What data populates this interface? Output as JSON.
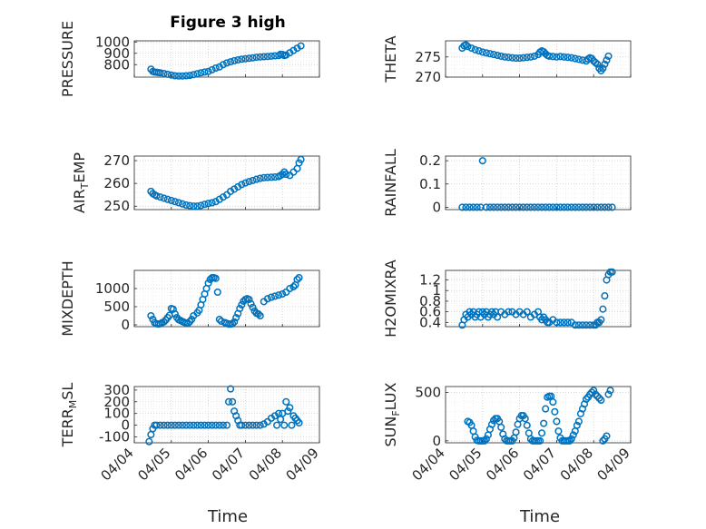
{
  "figure": {
    "title": "Figure 3 high",
    "marker_color": "#0072BD",
    "time_ticks": [
      "04/04",
      "04/05",
      "04/06",
      "04/07",
      "04/08",
      "04/09"
    ]
  },
  "chart_data": [
    {
      "type": "scatter",
      "ylabel": "PRESSURE",
      "ylim": [
        690,
        1010
      ],
      "yticks": [
        "800",
        "900",
        "1000"
      ],
      "ytick_values": [
        800,
        900,
        1000
      ],
      "x": [
        4.45,
        4.5,
        4.55,
        4.6,
        4.65,
        4.7,
        4.8,
        4.9,
        5.0,
        5.1,
        5.2,
        5.3,
        5.4,
        5.5,
        5.6,
        5.7,
        5.8,
        5.9,
        6.0,
        6.1,
        6.2,
        6.3,
        6.4,
        6.5,
        6.6,
        6.7,
        6.8,
        6.9,
        7.0,
        7.1,
        7.2,
        7.3,
        7.4,
        7.5,
        7.6,
        7.7,
        7.8,
        7.9,
        7.95,
        8.0,
        8.05,
        8.1,
        8.2,
        8.3,
        8.4,
        8.5
      ],
      "y": [
        760,
        740,
        735,
        733,
        730,
        728,
        722,
        715,
        708,
        702,
        700,
        700,
        702,
        705,
        712,
        720,
        728,
        735,
        740,
        755,
        770,
        780,
        800,
        815,
        825,
        835,
        842,
        848,
        852,
        856,
        860,
        865,
        868,
        870,
        872,
        875,
        878,
        880,
        892,
        890,
        880,
        885,
        905,
        925,
        945,
        965
      ]
    },
    {
      "type": "scatter",
      "ylabel": "THETA",
      "ylim": [
        270,
        279
      ],
      "yticks": [
        "270",
        "275"
      ],
      "ytick_values": [
        270,
        275
      ],
      "x": [
        4.45,
        4.5,
        4.55,
        4.6,
        4.7,
        4.8,
        4.9,
        5.0,
        5.1,
        5.2,
        5.3,
        5.4,
        5.5,
        5.6,
        5.7,
        5.8,
        5.9,
        6.0,
        6.1,
        6.2,
        6.3,
        6.4,
        6.5,
        6.55,
        6.6,
        6.65,
        6.7,
        6.75,
        6.8,
        6.9,
        7.0,
        7.1,
        7.2,
        7.3,
        7.4,
        7.5,
        7.6,
        7.7,
        7.8,
        7.85,
        7.9,
        7.95,
        8.0,
        8.05,
        8.1,
        8.15,
        8.2,
        8.25,
        8.3,
        8.35,
        8.4
      ],
      "y": [
        277.2,
        277.8,
        278.0,
        277.6,
        277.2,
        276.8,
        276.5,
        276.2,
        276.0,
        275.8,
        275.6,
        275.4,
        275.2,
        275.0,
        274.9,
        274.8,
        274.7,
        274.7,
        274.8,
        274.9,
        275.0,
        275.2,
        275.6,
        276.2,
        276.5,
        276.3,
        275.8,
        275.4,
        275.2,
        275.1,
        275.0,
        275.1,
        275.0,
        274.9,
        274.8,
        274.6,
        274.4,
        274.2,
        274.0,
        274.5,
        274.8,
        274.6,
        274.0,
        273.6,
        273.2,
        272.2,
        271.6,
        272.2,
        273.2,
        274.2,
        275.2
      ]
    },
    {
      "type": "scatter",
      "ylabel": "AIR_TEMP",
      "ylim": [
        248.5,
        272
      ],
      "yticks": [
        "250",
        "260",
        "270"
      ],
      "ytick_values": [
        250,
        260,
        270
      ],
      "x": [
        4.45,
        4.5,
        4.55,
        4.6,
        4.7,
        4.8,
        4.9,
        5.0,
        5.1,
        5.2,
        5.3,
        5.4,
        5.5,
        5.6,
        5.7,
        5.8,
        5.9,
        6.0,
        6.1,
        6.2,
        6.3,
        6.4,
        6.5,
        6.6,
        6.7,
        6.8,
        6.9,
        7.0,
        7.1,
        7.2,
        7.3,
        7.4,
        7.5,
        7.6,
        7.7,
        7.8,
        7.9,
        7.95,
        8.0,
        8.05,
        8.1,
        8.2,
        8.3,
        8.4,
        8.45,
        8.5
      ],
      "y": [
        256.5,
        255.5,
        255,
        254.5,
        254,
        253.5,
        253,
        252.5,
        252,
        251.5,
        251,
        250.5,
        250.2,
        250,
        250,
        250.3,
        250.8,
        251.2,
        251.5,
        252,
        253,
        254,
        255,
        256.5,
        257.5,
        258.5,
        259.5,
        260.2,
        260.8,
        261.3,
        261.8,
        262.2,
        262.5,
        262.6,
        262.7,
        262.8,
        263,
        263.5,
        264,
        265,
        264,
        263.5,
        265,
        266.5,
        269,
        270.5
      ]
    },
    {
      "type": "scatter",
      "ylabel": "RAINFALL",
      "ylim": [
        -0.01,
        0.22
      ],
      "yticks": [
        "0",
        "0.1",
        "0.2"
      ],
      "ytick_values": [
        0,
        0.1,
        0.2
      ],
      "x": [
        4.45,
        4.55,
        4.65,
        4.75,
        4.85,
        4.95,
        5.0,
        5.1,
        5.2,
        5.3,
        5.4,
        5.5,
        5.6,
        5.7,
        5.8,
        5.9,
        6.0,
        6.1,
        6.2,
        6.3,
        6.4,
        6.5,
        6.6,
        6.7,
        6.8,
        6.9,
        7.0,
        7.1,
        7.2,
        7.3,
        7.4,
        7.5,
        7.6,
        7.7,
        7.8,
        7.9,
        8.0,
        8.1,
        8.2,
        8.3,
        8.4,
        8.5
      ],
      "y": [
        0,
        0,
        0,
        0,
        0,
        0,
        0.2,
        0,
        0,
        0,
        0,
        0,
        0,
        0,
        0,
        0,
        0,
        0,
        0,
        0,
        0,
        0,
        0,
        0,
        0,
        0,
        0,
        0,
        0,
        0,
        0,
        0,
        0,
        0,
        0,
        0,
        0,
        0,
        0,
        0,
        0,
        0
      ]
    },
    {
      "type": "scatter",
      "ylabel": "MIXDEPTH",
      "ylim": [
        -50,
        1500
      ],
      "yticks": [
        "0",
        "500",
        "1000"
      ],
      "ytick_values": [
        0,
        500,
        1000
      ],
      "x": [
        4.45,
        4.5,
        4.55,
        4.6,
        4.65,
        4.7,
        4.75,
        4.8,
        4.85,
        4.9,
        4.95,
        5.0,
        5.05,
        5.1,
        5.15,
        5.2,
        5.25,
        5.3,
        5.35,
        5.4,
        5.45,
        5.5,
        5.55,
        5.6,
        5.7,
        5.75,
        5.8,
        5.85,
        5.9,
        5.95,
        6.0,
        6.05,
        6.1,
        6.15,
        6.2,
        6.25,
        6.3,
        6.35,
        6.45,
        6.5,
        6.55,
        6.6,
        6.65,
        6.7,
        6.75,
        6.8,
        6.85,
        6.9,
        6.95,
        7.0,
        7.05,
        7.1,
        7.15,
        7.2,
        7.25,
        7.3,
        7.35,
        7.4,
        7.5,
        7.6,
        7.7,
        7.8,
        7.9,
        8.0,
        8.1,
        8.2,
        8.3,
        8.35,
        8.4,
        8.45
      ],
      "y": [
        250,
        150,
        60,
        30,
        20,
        30,
        60,
        80,
        130,
        200,
        260,
        450,
        430,
        300,
        200,
        140,
        120,
        90,
        70,
        50,
        40,
        90,
        150,
        250,
        330,
        400,
        550,
        700,
        850,
        1000,
        1150,
        1250,
        1300,
        1300,
        1280,
        900,
        150,
        100,
        60,
        40,
        20,
        20,
        30,
        80,
        200,
        310,
        450,
        550,
        650,
        700,
        720,
        700,
        580,
        480,
        380,
        320,
        300,
        250,
        640,
        720,
        760,
        790,
        820,
        850,
        900,
        1000,
        1050,
        1100,
        1250,
        1300
      ]
    },
    {
      "type": "scatter",
      "ylabel": "H2OMIXRA",
      "ylim": [
        0.32,
        1.38
      ],
      "yticks": [
        "0.4",
        "0.6",
        "0.8",
        "1",
        "1.2"
      ],
      "ytick_values": [
        0.4,
        0.6,
        0.8,
        1.0,
        1.2
      ],
      "x": [
        4.45,
        4.5,
        4.55,
        4.6,
        4.65,
        4.7,
        4.75,
        4.8,
        4.85,
        4.9,
        4.95,
        5.0,
        5.05,
        5.1,
        5.15,
        5.2,
        5.25,
        5.3,
        5.35,
        5.4,
        5.5,
        5.6,
        5.7,
        5.8,
        5.9,
        6.0,
        6.1,
        6.2,
        6.3,
        6.4,
        6.5,
        6.55,
        6.6,
        6.65,
        6.7,
        6.75,
        6.8,
        6.9,
        7.0,
        7.1,
        7.2,
        7.3,
        7.4,
        7.5,
        7.6,
        7.7,
        7.8,
        7.9,
        8.0,
        8.05,
        8.1,
        8.15,
        8.2,
        8.25,
        8.3,
        8.35,
        8.4,
        8.45,
        8.5
      ],
      "y": [
        0.35,
        0.45,
        0.55,
        0.5,
        0.6,
        0.55,
        0.6,
        0.5,
        0.55,
        0.6,
        0.5,
        0.6,
        0.55,
        0.6,
        0.5,
        0.55,
        0.6,
        0.55,
        0.6,
        0.5,
        0.6,
        0.55,
        0.6,
        0.6,
        0.55,
        0.6,
        0.55,
        0.6,
        0.5,
        0.55,
        0.6,
        0.5,
        0.45,
        0.5,
        0.45,
        0.4,
        0.4,
        0.45,
        0.4,
        0.4,
        0.4,
        0.4,
        0.4,
        0.35,
        0.35,
        0.35,
        0.35,
        0.35,
        0.35,
        0.35,
        0.4,
        0.4,
        0.45,
        0.65,
        0.9,
        1.2,
        1.3,
        1.35,
        1.35
      ]
    },
    {
      "type": "scatter",
      "ylabel": "TERR_MSL",
      "ylim": [
        -150,
        330
      ],
      "yticks": [
        "-100",
        "0",
        "100",
        "200",
        "300"
      ],
      "ytick_values": [
        -100,
        0,
        100,
        200,
        300
      ],
      "x": [
        4.4,
        4.45,
        4.5,
        4.55,
        4.6,
        4.7,
        4.8,
        4.9,
        5.0,
        5.1,
        5.2,
        5.3,
        5.4,
        5.5,
        5.6,
        5.7,
        5.8,
        5.9,
        6.0,
        6.1,
        6.2,
        6.3,
        6.4,
        6.5,
        6.55,
        6.6,
        6.65,
        6.7,
        6.75,
        6.8,
        6.85,
        6.9,
        7.0,
        7.1,
        7.2,
        7.3,
        7.4,
        7.5,
        7.6,
        7.7,
        7.8,
        7.85,
        7.9,
        7.95,
        8.0,
        8.05,
        8.1,
        8.15,
        8.2,
        8.25,
        8.3,
        8.35,
        8.4,
        8.45
      ],
      "y": [
        -140,
        -80,
        -30,
        0,
        0,
        0,
        0,
        0,
        0,
        0,
        0,
        0,
        0,
        0,
        0,
        0,
        0,
        0,
        0,
        0,
        0,
        0,
        0,
        0,
        200,
        310,
        200,
        120,
        80,
        40,
        0,
        0,
        0,
        0,
        0,
        0,
        0,
        10,
        30,
        60,
        80,
        0,
        100,
        50,
        100,
        0,
        200,
        120,
        150,
        0,
        80,
        60,
        40,
        20
      ]
    },
    {
      "type": "scatter",
      "ylabel": "SUN_FLUX",
      "ylim": [
        -20,
        560
      ],
      "yticks": [
        "0",
        "500"
      ],
      "ytick_values": [
        0,
        500
      ],
      "x": [
        4.6,
        4.65,
        4.7,
        4.75,
        4.8,
        4.85,
        4.9,
        4.95,
        5.0,
        5.05,
        5.1,
        5.15,
        5.2,
        5.25,
        5.3,
        5.35,
        5.4,
        5.45,
        5.5,
        5.55,
        5.6,
        5.65,
        5.7,
        5.75,
        5.8,
        5.85,
        5.9,
        5.95,
        6.0,
        6.05,
        6.1,
        6.15,
        6.2,
        6.25,
        6.3,
        6.35,
        6.4,
        6.45,
        6.5,
        6.55,
        6.6,
        6.65,
        6.7,
        6.75,
        6.8,
        6.85,
        6.9,
        6.95,
        7.0,
        7.05,
        7.1,
        7.15,
        7.2,
        7.25,
        7.3,
        7.35,
        7.4,
        7.45,
        7.5,
        7.55,
        7.6,
        7.65,
        7.7,
        7.75,
        7.8,
        7.85,
        7.9,
        7.95,
        8.0,
        8.05,
        8.1,
        8.15,
        8.2,
        8.25,
        8.3,
        8.35,
        8.4,
        8.45
      ],
      "y": [
        200,
        190,
        160,
        100,
        40,
        5,
        0,
        0,
        0,
        0,
        20,
        60,
        120,
        170,
        210,
        230,
        230,
        200,
        140,
        70,
        20,
        0,
        0,
        0,
        0,
        30,
        90,
        170,
        230,
        260,
        260,
        230,
        160,
        80,
        20,
        0,
        0,
        0,
        0,
        0,
        80,
        180,
        330,
        450,
        460,
        460,
        400,
        300,
        200,
        100,
        30,
        0,
        0,
        0,
        0,
        0,
        20,
        60,
        100,
        160,
        200,
        280,
        330,
        380,
        430,
        450,
        480,
        500,
        520,
        480,
        460,
        440,
        420,
        0,
        20,
        50,
        480,
        520
      ]
    }
  ]
}
